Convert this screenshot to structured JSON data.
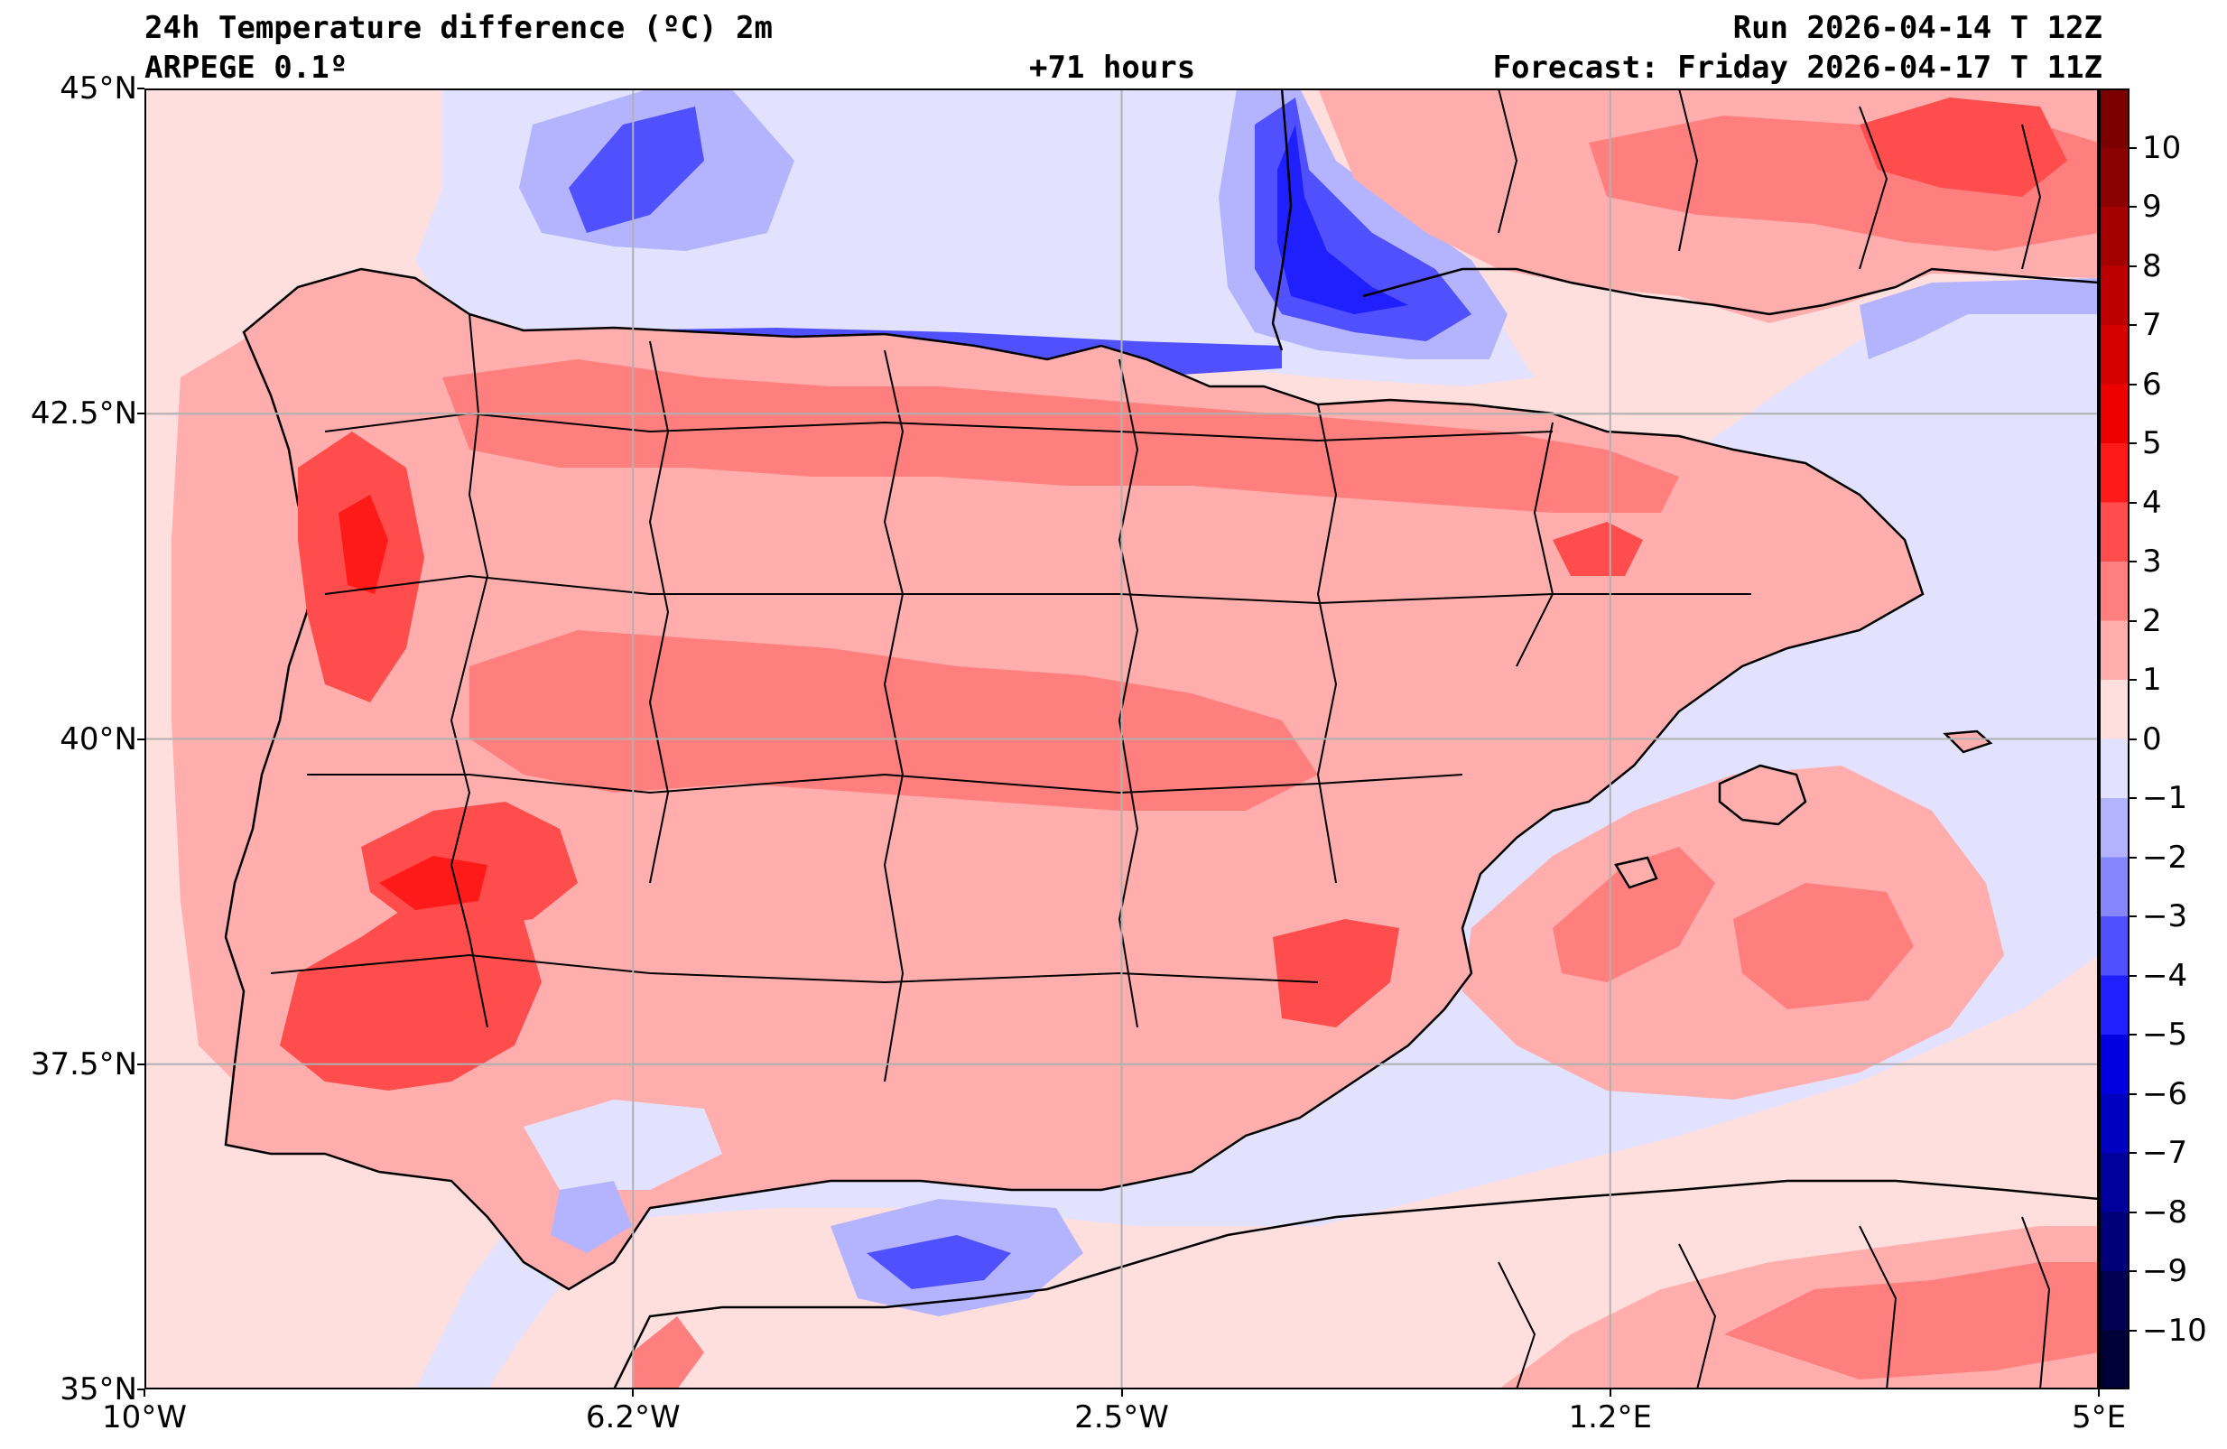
{
  "header": {
    "title": "24h Temperature difference (ºC) 2m",
    "model": "ARPEGE 0.1º",
    "lead": "+71 hours",
    "run": "Run 2026-04-14 T 12Z",
    "forecast": "Forecast: Friday 2026-04-17 T 11Z"
  },
  "axes": {
    "lat_labels": [
      "45°N",
      "42.5°N",
      "40°N",
      "37.5°N",
      "35°N"
    ],
    "lon_labels": [
      "10°W",
      "6.2°W",
      "2.5°W",
      "1.2°E",
      "5°E"
    ],
    "lat_values": [
      45,
      42.5,
      40,
      37.5,
      35
    ],
    "lon_values": [
      -10,
      -6.25,
      -2.5,
      1.25,
      5
    ],
    "extent": {
      "lon_min": -10,
      "lon_max": 5,
      "lat_min": 35,
      "lat_max": 45
    },
    "grid": true
  },
  "colorbar": {
    "tick_labels": [
      "10",
      "9",
      "8",
      "7",
      "6",
      "5",
      "4",
      "3",
      "2",
      "1",
      "0",
      "−1",
      "−2",
      "−3",
      "−4",
      "−5",
      "−6",
      "−7",
      "−8",
      "−9",
      "−10"
    ],
    "tick_values": [
      10,
      9,
      8,
      7,
      6,
      5,
      4,
      3,
      2,
      1,
      0,
      -1,
      -2,
      -3,
      -4,
      -5,
      -6,
      -7,
      -8,
      -9,
      -10
    ],
    "range": [
      -11,
      11
    ],
    "colors_top_to_bottom": [
      "#7a0000",
      "#8b0000",
      "#a40000",
      "#bc0000",
      "#d40000",
      "#ec0000",
      "#ff1a1a",
      "#ff4d4d",
      "#ff7f7f",
      "#ffadad",
      "#ffdede",
      "#e2e2fe",
      "#b4b4fe",
      "#8686fe",
      "#5050fe",
      "#2020ff",
      "#0000e0",
      "#0000c0",
      "#00009c",
      "#000078",
      "#000050",
      "#000036"
    ]
  },
  "colors": {
    "land_base": "#ffadad",
    "sea_base": "#ffdede",
    "warm_strong": "#ff4d4d",
    "warm_mid": "#ff7f7f",
    "cool_light": "#e2e2fe",
    "cool_mid": "#b4b4fe",
    "cool_strong": "#5050fe",
    "cool_deep": "#2020ff"
  }
}
